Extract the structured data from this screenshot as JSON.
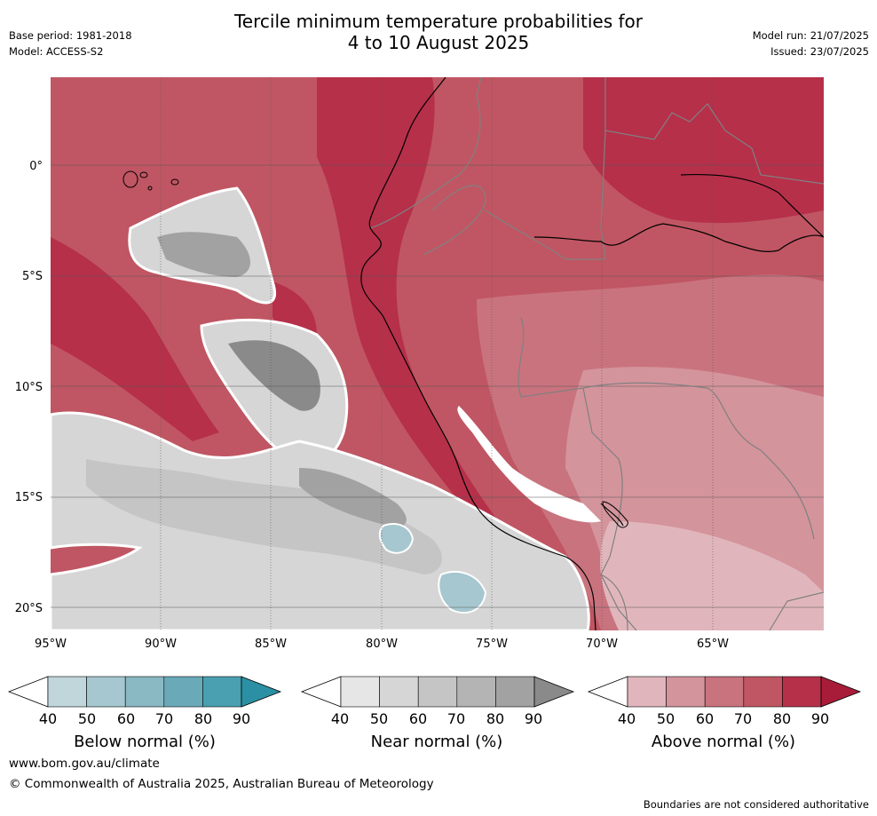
{
  "title_line1": "Tercile minimum temperature probabilities for",
  "title_line2": "4 to 10 August 2025",
  "base_period": "Base period: 1981-2018",
  "model": "Model: ACCESS-S2",
  "model_run": "Model run: 21/07/2025",
  "issued": "Issued: 23/07/2025",
  "lat_labels": [
    "0°",
    "5°S",
    "10°S",
    "15°S",
    "20°S"
  ],
  "lon_labels": [
    "95°W",
    "90°W",
    "85°W",
    "80°W",
    "75°W",
    "70°W",
    "65°W"
  ],
  "colorbars": [
    {
      "title": "Below normal (%)",
      "ticks": [
        "40",
        "50",
        "60",
        "70",
        "80",
        "90"
      ],
      "colors": [
        "#c1d6db",
        "#a6c7cf",
        "#8ab8c3",
        "#6aaab8",
        "#4aa0b0",
        "#2b90a3"
      ]
    },
    {
      "title": "Near normal (%)",
      "ticks": [
        "40",
        "50",
        "60",
        "70",
        "80",
        "90"
      ],
      "colors": [
        "#e6e6e6",
        "#d6d6d6",
        "#c5c5c5",
        "#b4b4b4",
        "#a2a2a2",
        "#8a8a8a"
      ]
    },
    {
      "title": "Above normal (%)",
      "ticks": [
        "40",
        "50",
        "60",
        "70",
        "80",
        "90"
      ],
      "colors": [
        "#e0b6bc",
        "#d4949c",
        "#c9737e",
        "#c05663",
        "#b6304a",
        "#a81c3a"
      ]
    }
  ],
  "footer_url": "www.bom.gov.au/climate",
  "footer_copyright": "© Commonwealth of Australia 2025, Australian Bureau of Meteorology",
  "footer_note": "Boundaries are not considered authoritative"
}
